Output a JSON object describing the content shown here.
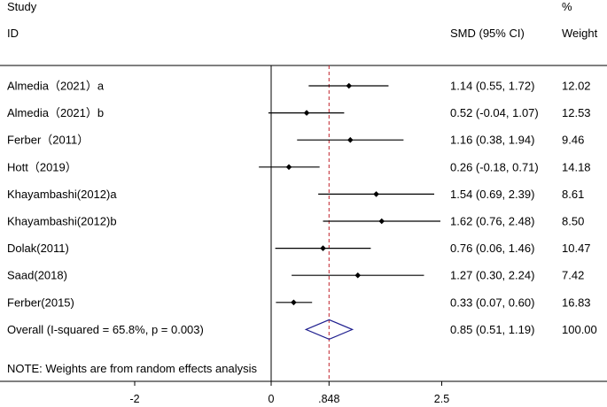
{
  "chart_data": {
    "type": "forest",
    "title": "",
    "header": {
      "study_line1": "Study",
      "study_line2": "ID",
      "ci_label": "SMD (95% CI)",
      "weight_line1": "%",
      "weight_line2": "Weight"
    },
    "xlim": [
      -2.6,
      2.6
    ],
    "xticks": [
      -2,
      0,
      0.848,
      2.5
    ],
    "xtick_labels": [
      "-2",
      "0",
      ".848",
      "2.5"
    ],
    "reference_line": 0,
    "overall_line": 0.848,
    "studies": [
      {
        "id": "Almedia（2021）a",
        "smd": 1.14,
        "lower": 0.55,
        "upper": 1.72,
        "ci_text": "1.14 (0.55, 1.72)",
        "weight": "12.02"
      },
      {
        "id": "Almedia（2021）b",
        "smd": 0.52,
        "lower": -0.04,
        "upper": 1.07,
        "ci_text": "0.52 (-0.04, 1.07)",
        "weight": "12.53"
      },
      {
        "id": "Ferber（2011）",
        "smd": 1.16,
        "lower": 0.38,
        "upper": 1.94,
        "ci_text": "1.16 (0.38, 1.94)",
        "weight": "9.46"
      },
      {
        "id": "Hott（2019）",
        "smd": 0.26,
        "lower": -0.18,
        "upper": 0.71,
        "ci_text": "0.26 (-0.18, 0.71)",
        "weight": "14.18"
      },
      {
        "id": "Khayambashi(2012)a",
        "smd": 1.54,
        "lower": 0.69,
        "upper": 2.39,
        "ci_text": "1.54 (0.69, 2.39)",
        "weight": "8.61"
      },
      {
        "id": "Khayambashi(2012)b",
        "smd": 1.62,
        "lower": 0.76,
        "upper": 2.48,
        "ci_text": "1.62 (0.76, 2.48)",
        "weight": "8.50"
      },
      {
        "id": "Dolak(2011)",
        "smd": 0.76,
        "lower": 0.06,
        "upper": 1.46,
        "ci_text": "0.76 (0.06, 1.46)",
        "weight": "10.47"
      },
      {
        "id": "Saad(2018)",
        "smd": 1.27,
        "lower": 0.3,
        "upper": 2.24,
        "ci_text": "1.27 (0.30, 2.24)",
        "weight": "7.42"
      },
      {
        "id": "Ferber(2015)",
        "smd": 0.33,
        "lower": 0.07,
        "upper": 0.6,
        "ci_text": "0.33 (0.07, 0.60)",
        "weight": "16.83"
      }
    ],
    "overall": {
      "id": "Overall  (I-squared = 65.8%, p = 0.003)",
      "smd": 0.85,
      "lower": 0.51,
      "upper": 1.19,
      "ci_text": "0.85 (0.51, 1.19)",
      "weight": "100.00"
    },
    "note": "NOTE: Weights are from random effects analysis",
    "colors": {
      "line": "#000000",
      "overall_line": "#c0202a",
      "diamond": "#1f1f8f"
    }
  }
}
